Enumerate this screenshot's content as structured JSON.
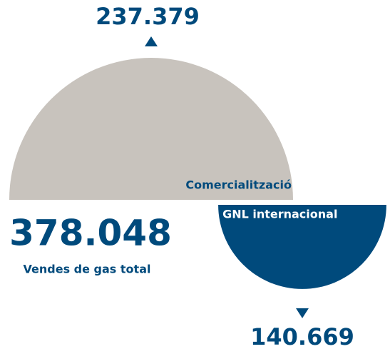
{
  "chart_data": {
    "type": "semicircle",
    "categories": [
      "Comercialització",
      "GNL internacional"
    ],
    "values": [
      237379,
      140669
    ],
    "value_labels": [
      "237.379",
      "140.669"
    ],
    "colors": [
      "#c8c3bd",
      "#004a7c"
    ],
    "total": 378048,
    "total_label": "378.048",
    "total_name": "Vendes de gas total"
  }
}
